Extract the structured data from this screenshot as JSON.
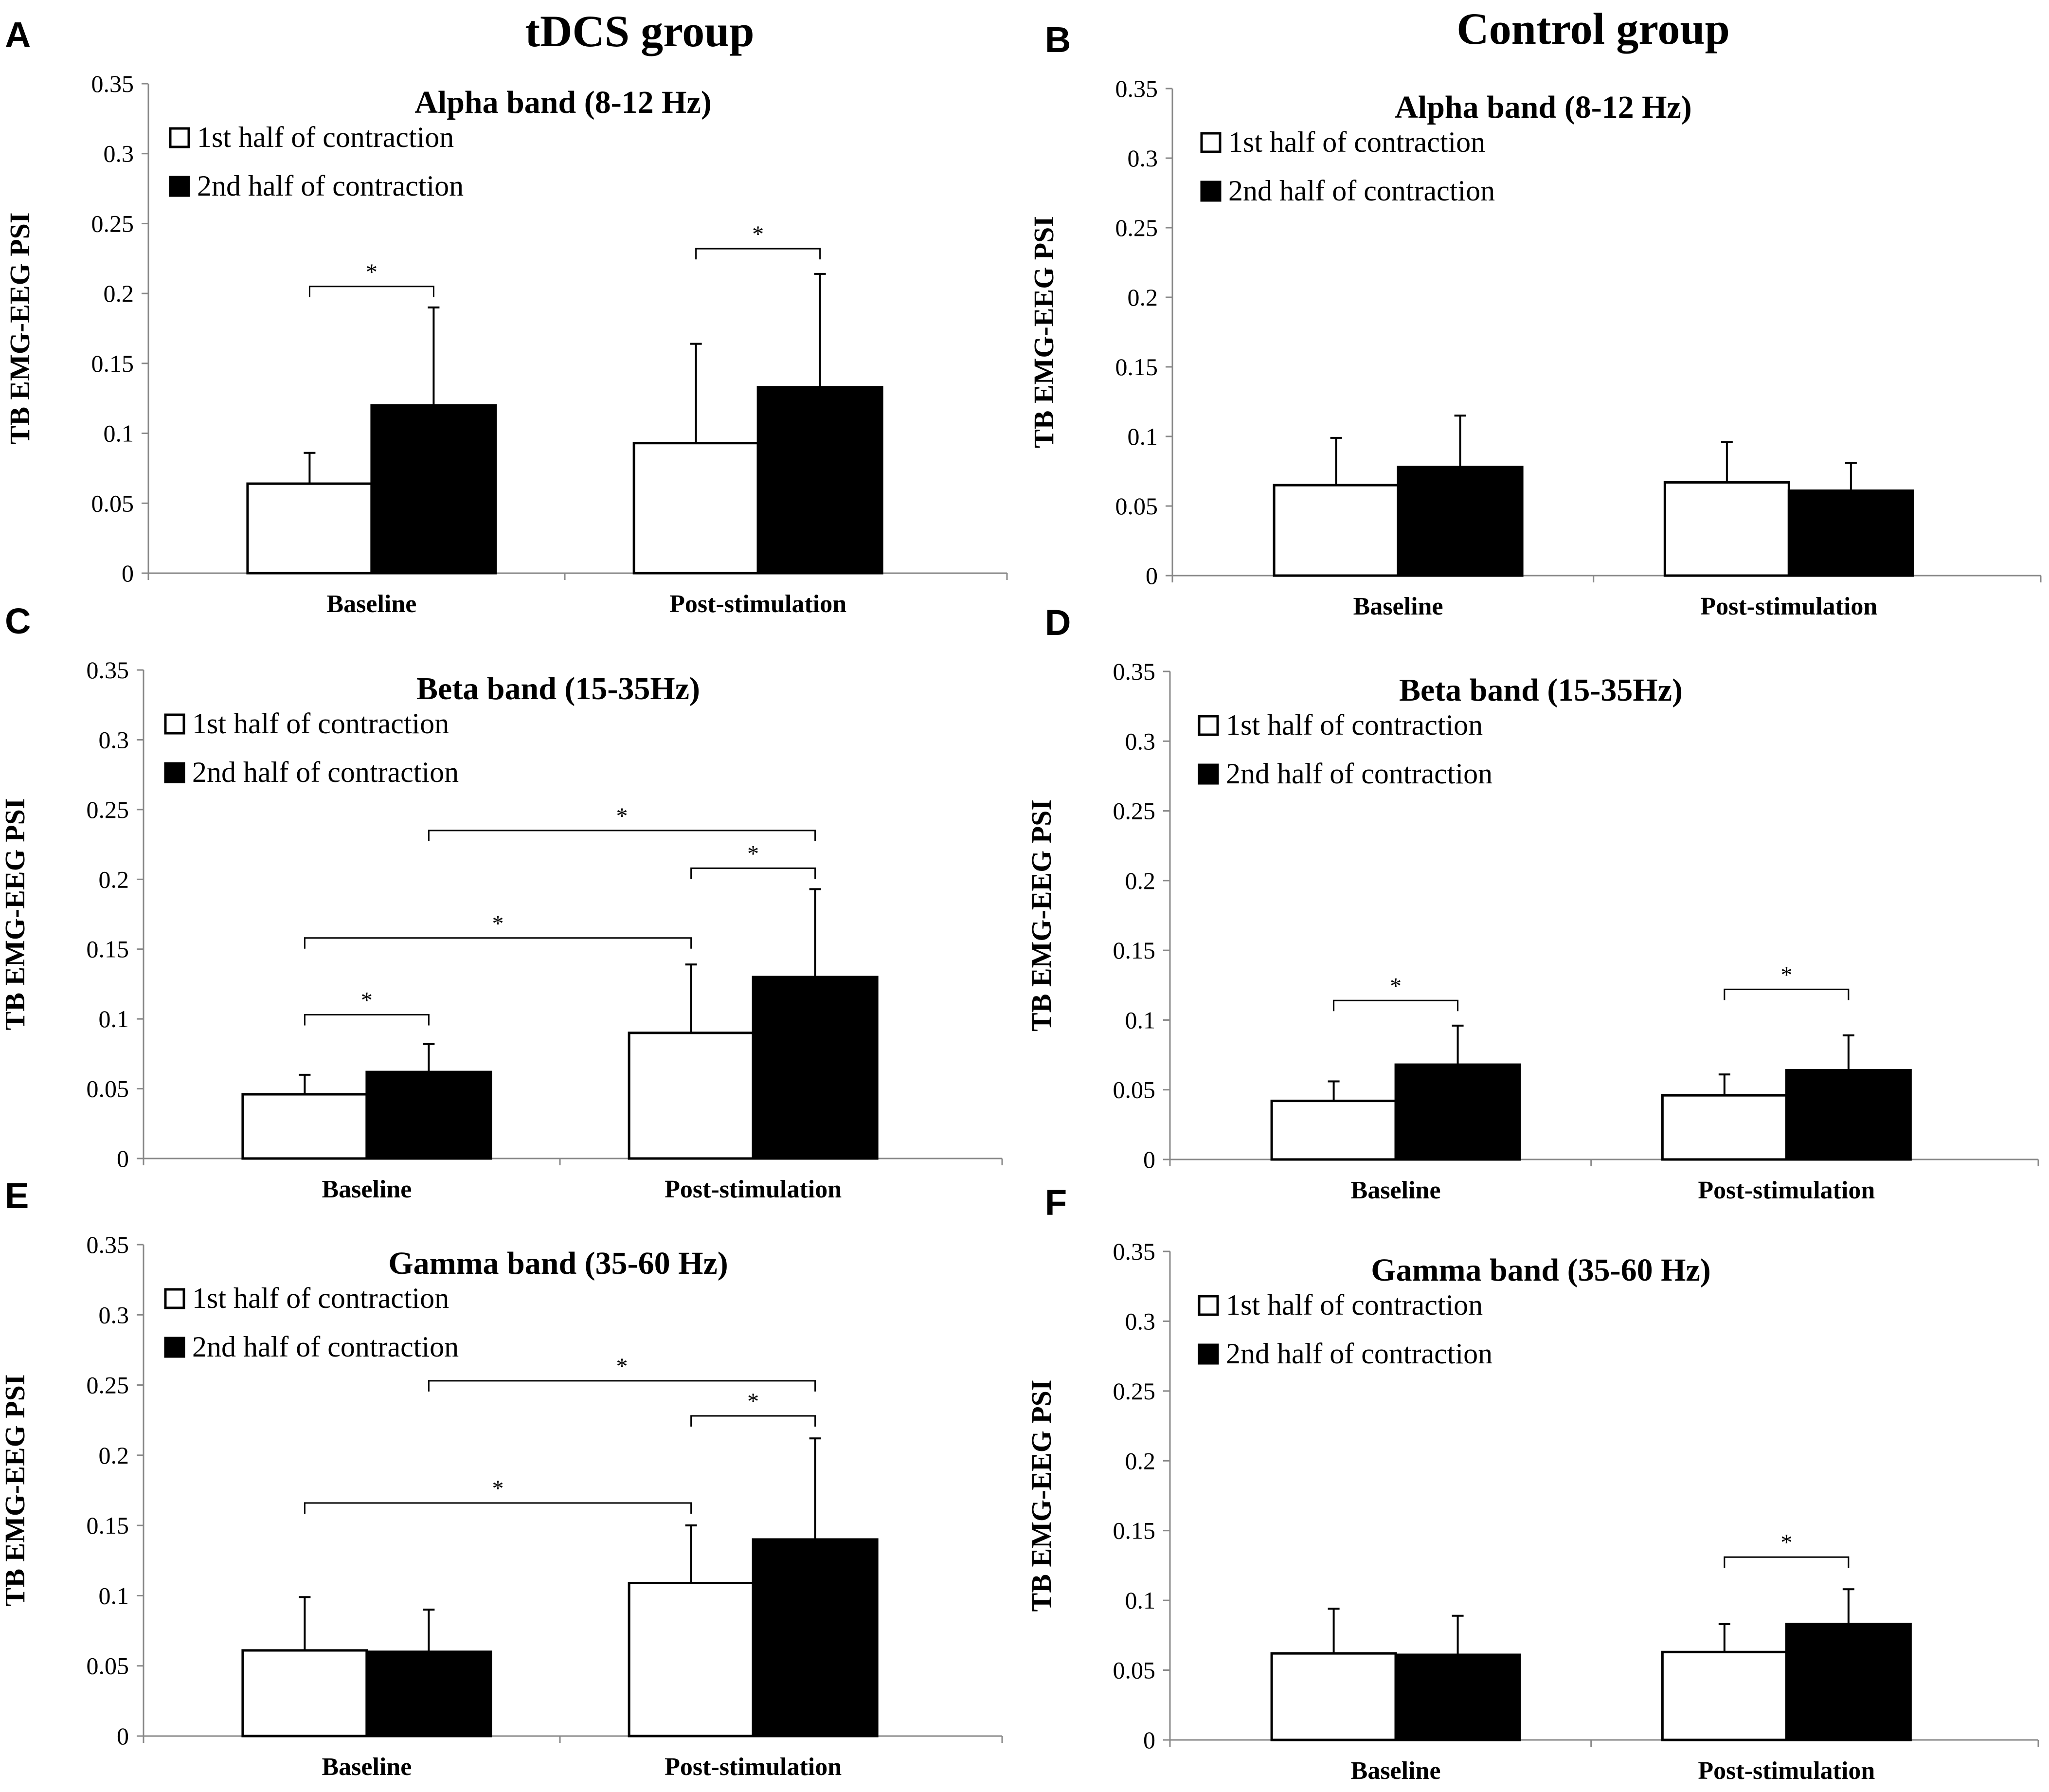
{
  "column_titles": [
    "tDCS group",
    "Control group"
  ],
  "chart_data": [
    {
      "panel": "A",
      "type": "bar",
      "title": "Alpha band (8-12 Hz)",
      "xlabel": "",
      "ylabel": "TB EMG-EEG PSI",
      "ylim": [
        0,
        0.35
      ],
      "yticks": [
        "0",
        "0.05",
        "0.1",
        "0.15",
        "0.2",
        "0.25",
        "0.3",
        "0.35"
      ],
      "categories": [
        "Baseline",
        "Post-stimulation"
      ],
      "series": [
        {
          "name": "1st half of contraction",
          "values": [
            0.064,
            0.093
          ],
          "errors": [
            0.022,
            0.071
          ],
          "color": "#ffffff"
        },
        {
          "name": "2nd half of contraction",
          "values": [
            0.12,
            0.133
          ],
          "errors": [
            0.07,
            0.081
          ],
          "color": "#000000"
        }
      ],
      "significance": [
        {
          "label": "*",
          "from": [
            0,
            0
          ],
          "to": [
            0,
            1
          ],
          "y": 0.205
        },
        {
          "label": "*",
          "from": [
            1,
            0
          ],
          "to": [
            1,
            1
          ],
          "y": 0.232
        }
      ]
    },
    {
      "panel": "B",
      "type": "bar",
      "title": "Alpha band (8-12 Hz)",
      "xlabel": "",
      "ylabel": "TB EMG-EEG PSI",
      "ylim": [
        0,
        0.35
      ],
      "yticks": [
        "0",
        "0.05",
        "0.1",
        "0.15",
        "0.2",
        "0.25",
        "0.3",
        "0.35"
      ],
      "categories": [
        "Baseline",
        "Post-stimulation"
      ],
      "series": [
        {
          "name": "1st half of contraction",
          "values": [
            0.065,
            0.067
          ],
          "errors": [
            0.034,
            0.029
          ],
          "color": "#ffffff"
        },
        {
          "name": "2nd half of contraction",
          "values": [
            0.078,
            0.061
          ],
          "errors": [
            0.037,
            0.02
          ],
          "color": "#000000"
        }
      ],
      "significance": []
    },
    {
      "panel": "C",
      "type": "bar",
      "title": "Beta band (15-35Hz)",
      "xlabel": "",
      "ylabel": "TB EMG-EEG PSI",
      "ylim": [
        0,
        0.35
      ],
      "yticks": [
        "0",
        "0.05",
        "0.1",
        "0.15",
        "0.2",
        "0.25",
        "0.3",
        "0.35"
      ],
      "categories": [
        "Baseline",
        "Post-stimulation"
      ],
      "series": [
        {
          "name": "1st half of contraction",
          "values": [
            0.046,
            0.09
          ],
          "errors": [
            0.014,
            0.049
          ],
          "color": "#ffffff"
        },
        {
          "name": "2nd half of contraction",
          "values": [
            0.062,
            0.13
          ],
          "errors": [
            0.02,
            0.063
          ],
          "color": "#000000"
        }
      ],
      "significance": [
        {
          "label": "*",
          "from": [
            0,
            0
          ],
          "to": [
            0,
            1
          ],
          "y": 0.103
        },
        {
          "label": "*",
          "from": [
            0,
            0
          ],
          "to": [
            1,
            0
          ],
          "y": 0.158
        },
        {
          "label": "*",
          "from": [
            1,
            0
          ],
          "to": [
            1,
            1
          ],
          "y": 0.208
        },
        {
          "label": "*",
          "from": [
            0,
            1
          ],
          "to": [
            1,
            1
          ],
          "y": 0.235
        }
      ]
    },
    {
      "panel": "D",
      "type": "bar",
      "title": "Beta band (15-35Hz)",
      "xlabel": "",
      "ylabel": "TB EMG-EEG PSI",
      "ylim": [
        0,
        0.35
      ],
      "yticks": [
        "0",
        "0.05",
        "0.1",
        "0.15",
        "0.2",
        "0.25",
        "0.3",
        "0.35"
      ],
      "categories": [
        "Baseline",
        "Post-stimulation"
      ],
      "series": [
        {
          "name": "1st half of contraction",
          "values": [
            0.042,
            0.046
          ],
          "errors": [
            0.014,
            0.015
          ],
          "color": "#ffffff"
        },
        {
          "name": "2nd half of contraction",
          "values": [
            0.068,
            0.064
          ],
          "errors": [
            0.028,
            0.025
          ],
          "color": "#000000"
        }
      ],
      "significance": [
        {
          "label": "*",
          "from": [
            0,
            0
          ],
          "to": [
            0,
            1
          ],
          "y": 0.114
        },
        {
          "label": "*",
          "from": [
            1,
            0
          ],
          "to": [
            1,
            1
          ],
          "y": 0.122
        }
      ]
    },
    {
      "panel": "E",
      "type": "bar",
      "title": "Gamma band (35-60 Hz)",
      "xlabel": "",
      "ylabel": "TB EMG-EEG PSI",
      "ylim": [
        0,
        0.35
      ],
      "yticks": [
        "0",
        "0.05",
        "0.1",
        "0.15",
        "0.2",
        "0.25",
        "0.3",
        "0.35"
      ],
      "categories": [
        "Baseline",
        "Post-stimulation"
      ],
      "series": [
        {
          "name": "1st half of contraction",
          "values": [
            0.061,
            0.109
          ],
          "errors": [
            0.038,
            0.041
          ],
          "color": "#ffffff"
        },
        {
          "name": "2nd half of contraction",
          "values": [
            0.06,
            0.14
          ],
          "errors": [
            0.03,
            0.072
          ],
          "color": "#000000"
        }
      ],
      "significance": [
        {
          "label": "*",
          "from": [
            0,
            0
          ],
          "to": [
            1,
            0
          ],
          "y": 0.166
        },
        {
          "label": "*",
          "from": [
            1,
            0
          ],
          "to": [
            1,
            1
          ],
          "y": 0.228
        },
        {
          "label": "*",
          "from": [
            0,
            1
          ],
          "to": [
            1,
            1
          ],
          "y": 0.253
        }
      ]
    },
    {
      "panel": "F",
      "type": "bar",
      "title": "Gamma band (35-60 Hz)",
      "xlabel": "",
      "ylabel": "TB EMG-EEG PSI",
      "ylim": [
        0,
        0.35
      ],
      "yticks": [
        "0",
        "0.05",
        "0.1",
        "0.15",
        "0.2",
        "0.25",
        "0.3",
        "0.35"
      ],
      "categories": [
        "Baseline",
        "Post-stimulation"
      ],
      "series": [
        {
          "name": "1st half of contraction",
          "values": [
            0.062,
            0.063
          ],
          "errors": [
            0.032,
            0.02
          ],
          "color": "#ffffff"
        },
        {
          "name": "2nd half of contraction",
          "values": [
            0.061,
            0.083
          ],
          "errors": [
            0.028,
            0.025
          ],
          "color": "#000000"
        }
      ],
      "significance": [
        {
          "label": "*",
          "from": [
            1,
            0
          ],
          "to": [
            1,
            1
          ],
          "y": 0.131
        }
      ]
    }
  ]
}
